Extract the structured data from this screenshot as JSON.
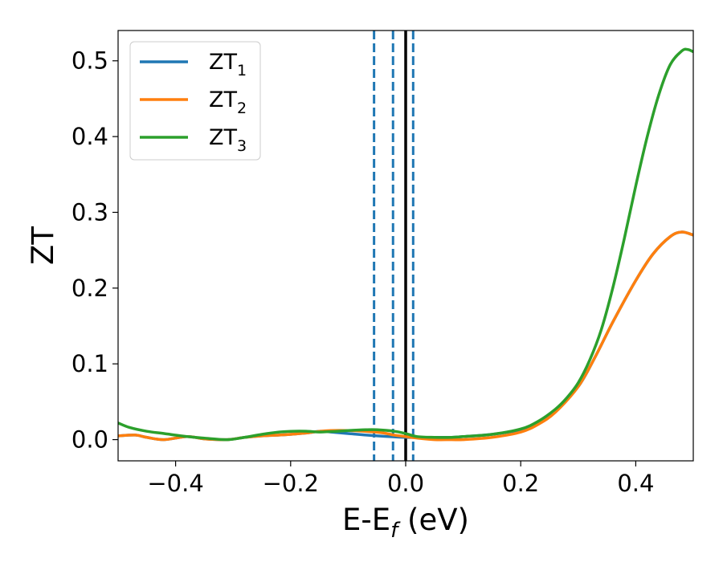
{
  "chart_data": {
    "type": "line",
    "xlabel_main": "E-E",
    "xlabel_sub": "f",
    "xlabel_unit": " (eV)",
    "ylabel": "ZT",
    "xlim": [
      -0.5,
      0.5
    ],
    "ylim": [
      -0.028,
      0.54
    ],
    "x_ticks": [
      -0.4,
      -0.2,
      0.0,
      0.2,
      0.4
    ],
    "x_tick_labels": [
      "−0.4",
      "−0.2",
      "0.0",
      "0.2",
      "0.4"
    ],
    "y_ticks": [
      0.0,
      0.1,
      0.2,
      0.3,
      0.4,
      0.5
    ],
    "y_tick_labels": [
      "0.0",
      "0.1",
      "0.2",
      "0.3",
      "0.4",
      "0.5"
    ],
    "grid": false,
    "legend_position": "top-left",
    "reference_lines": [
      {
        "x": -0.055,
        "style": "dashed",
        "color": "#1f77b4"
      },
      {
        "x": -0.022,
        "style": "dashed",
        "color": "#1f77b4"
      },
      {
        "x": 0.0,
        "style": "solid",
        "color": "#000000"
      },
      {
        "x": 0.013,
        "style": "dashed",
        "color": "#1f77b4"
      }
    ],
    "series": [
      {
        "name": "ZT",
        "sub": "1",
        "color": "#1f77b4",
        "x": [
          -0.5,
          -0.47,
          -0.45,
          -0.42,
          -0.38,
          -0.35,
          -0.31,
          -0.28,
          -0.25,
          -0.22,
          -0.2,
          -0.17,
          -0.15,
          -0.13,
          -0.1,
          -0.05,
          0.0,
          0.03,
          0.05,
          0.08,
          0.1,
          0.15,
          0.2,
          0.23,
          0.26,
          0.3,
          0.33,
          0.36,
          0.4,
          0.43,
          0.46,
          0.48,
          0.5
        ],
        "y": [
          0.005,
          0.006,
          0.003,
          0.0,
          0.004,
          0.001,
          0.0,
          0.003,
          0.005,
          0.006,
          0.007,
          0.009,
          0.011,
          0.01,
          0.008,
          0.005,
          0.003,
          0.003,
          0.003,
          0.003,
          0.004,
          0.007,
          0.013,
          0.022,
          0.038,
          0.07,
          0.11,
          0.155,
          0.21,
          0.245,
          0.268,
          0.274,
          0.27
        ]
      },
      {
        "name": "ZT",
        "sub": "2",
        "color": "#ff7f0e",
        "x": [
          -0.5,
          -0.47,
          -0.45,
          -0.42,
          -0.38,
          -0.35,
          -0.31,
          -0.28,
          -0.25,
          -0.22,
          -0.2,
          -0.17,
          -0.15,
          -0.13,
          -0.1,
          -0.07,
          -0.04,
          -0.02,
          0.0,
          0.02,
          0.05,
          0.08,
          0.1,
          0.15,
          0.2,
          0.23,
          0.26,
          0.3,
          0.33,
          0.36,
          0.4,
          0.43,
          0.46,
          0.48,
          0.5
        ],
        "y": [
          0.005,
          0.006,
          0.003,
          0.0,
          0.004,
          0.001,
          0.0,
          0.003,
          0.005,
          0.006,
          0.007,
          0.009,
          0.011,
          0.012,
          0.012,
          0.011,
          0.009,
          0.006,
          0.004,
          0.002,
          0.0,
          0.0,
          0.0,
          0.003,
          0.01,
          0.02,
          0.036,
          0.07,
          0.11,
          0.155,
          0.21,
          0.245,
          0.268,
          0.274,
          0.27
        ]
      },
      {
        "name": "ZT",
        "sub": "3",
        "color": "#2ca02c",
        "x": [
          -0.5,
          -0.48,
          -0.45,
          -0.42,
          -0.38,
          -0.35,
          -0.31,
          -0.28,
          -0.25,
          -0.22,
          -0.2,
          -0.17,
          -0.15,
          -0.12,
          -0.1,
          -0.07,
          -0.05,
          -0.02,
          0.0,
          0.02,
          0.05,
          0.08,
          0.1,
          0.15,
          0.2,
          0.23,
          0.26,
          0.28,
          0.3,
          0.32,
          0.34,
          0.36,
          0.38,
          0.4,
          0.42,
          0.44,
          0.46,
          0.48,
          0.49,
          0.5
        ],
        "y": [
          0.022,
          0.016,
          0.011,
          0.008,
          0.004,
          0.002,
          0.0,
          0.003,
          0.007,
          0.01,
          0.011,
          0.011,
          0.01,
          0.011,
          0.012,
          0.013,
          0.013,
          0.011,
          0.008,
          0.004,
          0.003,
          0.003,
          0.004,
          0.007,
          0.014,
          0.024,
          0.04,
          0.055,
          0.075,
          0.105,
          0.145,
          0.2,
          0.265,
          0.335,
          0.4,
          0.455,
          0.495,
          0.513,
          0.515,
          0.512
        ]
      }
    ]
  }
}
